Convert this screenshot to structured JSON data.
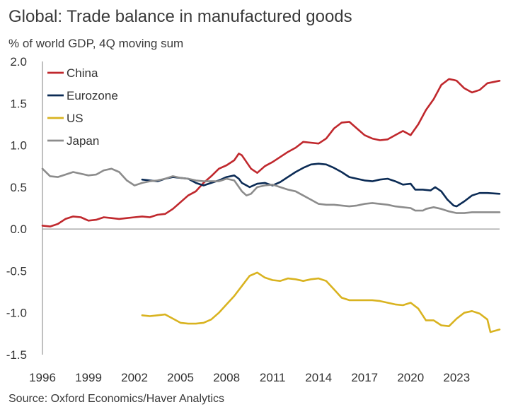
{
  "title": "Global: Trade balance in manufactured goods",
  "subtitle": "% of world GDP, 4Q moving sum",
  "source": "Source: Oxford Economics/Haver Analytics",
  "chart_data": {
    "type": "line",
    "title": "Global: Trade balance in manufactured goods",
    "ylabel": "% of world GDP, 4Q moving sum",
    "xlabel": "",
    "xlim": [
      1996,
      2025.8
    ],
    "ylim": [
      -1.5,
      2.0
    ],
    "yticks": [
      2.0,
      1.5,
      1.0,
      0.5,
      0.0,
      -0.5,
      -1.0,
      -1.5
    ],
    "ytick_labels": [
      "2.0",
      "1.5",
      "1.0",
      "0.5",
      "0.0",
      "-0.5",
      "-1.0",
      "-1.5"
    ],
    "xticks": [
      1996,
      1999,
      2002,
      2005,
      2008,
      2011,
      2014,
      2017,
      2020,
      2023
    ],
    "xtick_labels": [
      "1996",
      "1999",
      "2002",
      "2005",
      "2008",
      "2011",
      "2014",
      "2017",
      "2020",
      "2023"
    ],
    "legend": "top-left",
    "series": [
      {
        "name": "China",
        "color": "#c0282d",
        "points": [
          [
            1996,
            0.04
          ],
          [
            1996.5,
            0.03
          ],
          [
            1997,
            0.06
          ],
          [
            1997.5,
            0.12
          ],
          [
            1998,
            0.15
          ],
          [
            1998.5,
            0.14
          ],
          [
            1999,
            0.1
          ],
          [
            1999.5,
            0.11
          ],
          [
            2000,
            0.14
          ],
          [
            2000.5,
            0.13
          ],
          [
            2001,
            0.12
          ],
          [
            2001.5,
            0.13
          ],
          [
            2002,
            0.14
          ],
          [
            2002.5,
            0.15
          ],
          [
            2003,
            0.14
          ],
          [
            2003.5,
            0.17
          ],
          [
            2004,
            0.18
          ],
          [
            2004.5,
            0.24
          ],
          [
            2005,
            0.32
          ],
          [
            2005.5,
            0.4
          ],
          [
            2006,
            0.45
          ],
          [
            2006.5,
            0.55
          ],
          [
            2007,
            0.63
          ],
          [
            2007.5,
            0.72
          ],
          [
            2008,
            0.76
          ],
          [
            2008.5,
            0.82
          ],
          [
            2008.8,
            0.9
          ],
          [
            2009,
            0.88
          ],
          [
            2009.3,
            0.8
          ],
          [
            2009.6,
            0.72
          ],
          [
            2010,
            0.67
          ],
          [
            2010.5,
            0.75
          ],
          [
            2011,
            0.8
          ],
          [
            2011.5,
            0.86
          ],
          [
            2012,
            0.92
          ],
          [
            2012.5,
            0.97
          ],
          [
            2013,
            1.04
          ],
          [
            2013.5,
            1.03
          ],
          [
            2014,
            1.02
          ],
          [
            2014.5,
            1.08
          ],
          [
            2015,
            1.2
          ],
          [
            2015.5,
            1.27
          ],
          [
            2016,
            1.28
          ],
          [
            2016.5,
            1.2
          ],
          [
            2017,
            1.12
          ],
          [
            2017.5,
            1.08
          ],
          [
            2018,
            1.06
          ],
          [
            2018.5,
            1.07
          ],
          [
            2019,
            1.12
          ],
          [
            2019.5,
            1.17
          ],
          [
            2020,
            1.12
          ],
          [
            2020.5,
            1.25
          ],
          [
            2021,
            1.42
          ],
          [
            2021.5,
            1.55
          ],
          [
            2022,
            1.72
          ],
          [
            2022.5,
            1.79
          ],
          [
            2022.8,
            1.78
          ],
          [
            2023,
            1.77
          ],
          [
            2023.5,
            1.68
          ],
          [
            2024,
            1.63
          ],
          [
            2024.5,
            1.66
          ],
          [
            2025,
            1.74
          ],
          [
            2025.8,
            1.77
          ]
        ]
      },
      {
        "name": "Eurozone",
        "color": "#0b2b55",
        "points": [
          [
            2002.5,
            0.59
          ],
          [
            2003,
            0.58
          ],
          [
            2003.5,
            0.57
          ],
          [
            2004,
            0.6
          ],
          [
            2004.5,
            0.62
          ],
          [
            2005,
            0.61
          ],
          [
            2005.5,
            0.6
          ],
          [
            2006,
            0.55
          ],
          [
            2006.5,
            0.52
          ],
          [
            2007,
            0.55
          ],
          [
            2007.5,
            0.58
          ],
          [
            2008,
            0.62
          ],
          [
            2008.5,
            0.64
          ],
          [
            2008.8,
            0.6
          ],
          [
            2009,
            0.55
          ],
          [
            2009.5,
            0.5
          ],
          [
            2010,
            0.54
          ],
          [
            2010.5,
            0.55
          ],
          [
            2011,
            0.52
          ],
          [
            2011.5,
            0.56
          ],
          [
            2012,
            0.62
          ],
          [
            2012.5,
            0.68
          ],
          [
            2013,
            0.73
          ],
          [
            2013.5,
            0.77
          ],
          [
            2014,
            0.78
          ],
          [
            2014.5,
            0.77
          ],
          [
            2015,
            0.73
          ],
          [
            2015.5,
            0.68
          ],
          [
            2016,
            0.62
          ],
          [
            2016.5,
            0.6
          ],
          [
            2017,
            0.58
          ],
          [
            2017.5,
            0.57
          ],
          [
            2018,
            0.59
          ],
          [
            2018.5,
            0.6
          ],
          [
            2019,
            0.57
          ],
          [
            2019.5,
            0.53
          ],
          [
            2020,
            0.54
          ],
          [
            2020.3,
            0.47
          ],
          [
            2020.8,
            0.47
          ],
          [
            2021.3,
            0.46
          ],
          [
            2021.6,
            0.5
          ],
          [
            2022,
            0.45
          ],
          [
            2022.4,
            0.35
          ],
          [
            2022.8,
            0.28
          ],
          [
            2023,
            0.27
          ],
          [
            2023.5,
            0.33
          ],
          [
            2024,
            0.4
          ],
          [
            2024.5,
            0.43
          ],
          [
            2025,
            0.43
          ],
          [
            2025.8,
            0.42
          ]
        ]
      },
      {
        "name": "US",
        "color": "#d9b320",
        "points": [
          [
            2002.5,
            -1.03
          ],
          [
            2003,
            -1.04
          ],
          [
            2003.5,
            -1.03
          ],
          [
            2004,
            -1.02
          ],
          [
            2004.5,
            -1.07
          ],
          [
            2005,
            -1.12
          ],
          [
            2005.5,
            -1.13
          ],
          [
            2006,
            -1.13
          ],
          [
            2006.5,
            -1.12
          ],
          [
            2007,
            -1.08
          ],
          [
            2007.5,
            -1.0
          ],
          [
            2008,
            -0.9
          ],
          [
            2008.5,
            -0.8
          ],
          [
            2009,
            -0.68
          ],
          [
            2009.5,
            -0.56
          ],
          [
            2010,
            -0.52
          ],
          [
            2010.5,
            -0.58
          ],
          [
            2011,
            -0.61
          ],
          [
            2011.5,
            -0.62
          ],
          [
            2012,
            -0.59
          ],
          [
            2012.5,
            -0.6
          ],
          [
            2013,
            -0.62
          ],
          [
            2013.5,
            -0.6
          ],
          [
            2014,
            -0.59
          ],
          [
            2014.5,
            -0.62
          ],
          [
            2015,
            -0.72
          ],
          [
            2015.5,
            -0.82
          ],
          [
            2016,
            -0.85
          ],
          [
            2016.5,
            -0.85
          ],
          [
            2017,
            -0.85
          ],
          [
            2017.5,
            -0.85
          ],
          [
            2018,
            -0.86
          ],
          [
            2018.5,
            -0.88
          ],
          [
            2019,
            -0.9
          ],
          [
            2019.5,
            -0.91
          ],
          [
            2020,
            -0.88
          ],
          [
            2020.5,
            -0.95
          ],
          [
            2021,
            -1.09
          ],
          [
            2021.5,
            -1.09
          ],
          [
            2022,
            -1.15
          ],
          [
            2022.5,
            -1.16
          ],
          [
            2023,
            -1.07
          ],
          [
            2023.5,
            -1.0
          ],
          [
            2024,
            -0.98
          ],
          [
            2024.5,
            -1.01
          ],
          [
            2025,
            -1.08
          ],
          [
            2025.2,
            -1.23
          ],
          [
            2025.8,
            -1.2
          ]
        ]
      },
      {
        "name": "Japan",
        "color": "#8c8c8c",
        "points": [
          [
            1996,
            0.72
          ],
          [
            1996.5,
            0.63
          ],
          [
            1997,
            0.62
          ],
          [
            1997.5,
            0.65
          ],
          [
            1998,
            0.68
          ],
          [
            1998.5,
            0.66
          ],
          [
            1999,
            0.64
          ],
          [
            1999.5,
            0.65
          ],
          [
            2000,
            0.7
          ],
          [
            2000.5,
            0.72
          ],
          [
            2001,
            0.68
          ],
          [
            2001.5,
            0.58
          ],
          [
            2002,
            0.52
          ],
          [
            2002.5,
            0.55
          ],
          [
            2003,
            0.57
          ],
          [
            2003.5,
            0.58
          ],
          [
            2004,
            0.6
          ],
          [
            2004.5,
            0.63
          ],
          [
            2005,
            0.61
          ],
          [
            2005.5,
            0.6
          ],
          [
            2006,
            0.58
          ],
          [
            2006.5,
            0.57
          ],
          [
            2007,
            0.57
          ],
          [
            2007.5,
            0.57
          ],
          [
            2008,
            0.6
          ],
          [
            2008.5,
            0.58
          ],
          [
            2009,
            0.45
          ],
          [
            2009.3,
            0.4
          ],
          [
            2009.6,
            0.42
          ],
          [
            2010,
            0.5
          ],
          [
            2010.5,
            0.52
          ],
          [
            2011,
            0.53
          ],
          [
            2011.5,
            0.5
          ],
          [
            2012,
            0.47
          ],
          [
            2012.5,
            0.45
          ],
          [
            2013,
            0.4
          ],
          [
            2013.5,
            0.35
          ],
          [
            2014,
            0.3
          ],
          [
            2014.5,
            0.29
          ],
          [
            2015,
            0.29
          ],
          [
            2015.5,
            0.28
          ],
          [
            2016,
            0.27
          ],
          [
            2016.5,
            0.28
          ],
          [
            2017,
            0.3
          ],
          [
            2017.5,
            0.31
          ],
          [
            2018,
            0.3
          ],
          [
            2018.5,
            0.29
          ],
          [
            2019,
            0.27
          ],
          [
            2019.5,
            0.26
          ],
          [
            2020,
            0.25
          ],
          [
            2020.3,
            0.22
          ],
          [
            2020.8,
            0.22
          ],
          [
            2021,
            0.24
          ],
          [
            2021.5,
            0.26
          ],
          [
            2022,
            0.24
          ],
          [
            2022.5,
            0.21
          ],
          [
            2023,
            0.19
          ],
          [
            2023.5,
            0.19
          ],
          [
            2024,
            0.2
          ],
          [
            2024.5,
            0.2
          ],
          [
            2025,
            0.2
          ],
          [
            2025.8,
            0.2
          ]
        ]
      }
    ]
  }
}
